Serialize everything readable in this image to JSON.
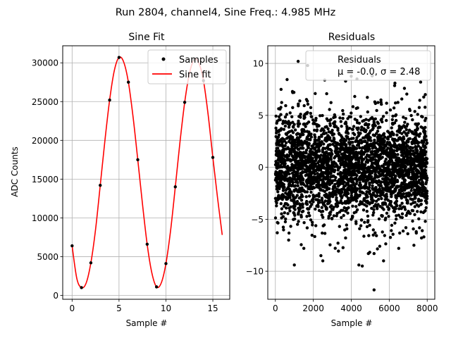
{
  "figure": {
    "suptitle": "Run 2804, channel4, Sine Freq.: 4.985 MHz"
  },
  "chart_data": [
    {
      "type": "scatter",
      "title": "Sine Fit",
      "xlabel": "Sample #",
      "ylabel": "ADC Counts",
      "xlim": [
        -1.0,
        16.8
      ],
      "ylim": [
        -500,
        32200
      ],
      "xticks": [
        0,
        5,
        10,
        15
      ],
      "yticks": [
        0,
        5000,
        10000,
        15000,
        20000,
        25000,
        30000
      ],
      "grid": true,
      "legend_position": "top-right",
      "series": [
        {
          "name": "Samples",
          "kind": "scatter",
          "color": "#000000",
          "x": [
            0,
            1,
            2,
            3,
            4,
            5,
            6,
            7,
            8,
            9,
            10,
            11,
            12,
            13,
            14,
            15
          ],
          "y": [
            6400,
            1000,
            4200,
            14200,
            25200,
            30700,
            27500,
            17500,
            6600,
            1100,
            4100,
            14000,
            24900,
            30400,
            27700,
            17800
          ]
        },
        {
          "name": "Sine fit",
          "kind": "line",
          "color": "#ff0000",
          "x": [
            0,
            0.5,
            1,
            1.5,
            2,
            2.5,
            3,
            3.5,
            4,
            4.5,
            5,
            5.5,
            6,
            6.5,
            7,
            7.5,
            8,
            8.5,
            9,
            9.5,
            10,
            10.5,
            11,
            11.5,
            12,
            12.5,
            13,
            13.5,
            14,
            14.5,
            15,
            15.5,
            16
          ],
          "y": [
            6400,
            2200,
            1000,
            1600,
            4200,
            8500,
            14200,
            20000,
            25200,
            29000,
            30700,
            30100,
            27500,
            23000,
            17500,
            11800,
            6600,
            2900,
            1100,
            1600,
            4100,
            8400,
            14000,
            19800,
            24900,
            28600,
            30400,
            30000,
            27700,
            23300,
            17800,
            12600,
            7800
          ]
        }
      ]
    },
    {
      "type": "scatter",
      "title": "Residuals",
      "xlabel": "Sample #",
      "ylabel": "",
      "xlim": [
        -400,
        8400
      ],
      "ylim": [
        -12.7,
        11.7
      ],
      "xticks": [
        0,
        2000,
        4000,
        6000,
        8000
      ],
      "yticks": [
        -10,
        -5,
        0,
        5,
        10
      ],
      "grid": true,
      "legend_position": "top-right",
      "legend": {
        "title": "Residuals",
        "stats": "μ = -0.0, σ = 2.48"
      },
      "series": [
        {
          "name": "",
          "kind": "scatter",
          "color": "#000000",
          "n_points": 8000,
          "mu": 0.0,
          "sigma": 2.48,
          "sampled_points": [
            [
              1200,
              10.2
            ],
            [
              2600,
              8.4
            ],
            [
              4300,
              8.5
            ],
            [
              5100,
              8.8
            ],
            [
              6300,
              8.1
            ],
            [
              7900,
              7.0
            ],
            [
              1700,
              9.8
            ],
            [
              3700,
              8.3
            ],
            [
              6800,
              7.6
            ],
            [
              1000,
              -9.4
            ],
            [
              4400,
              -9.4
            ],
            [
              5200,
              -11.8
            ],
            [
              2500,
              -9.0
            ],
            [
              2400,
              -8.5
            ],
            [
              700,
              -7.0
            ],
            [
              4900,
              -8.3
            ],
            [
              5200,
              -8.3
            ],
            [
              5500,
              -7.6
            ],
            [
              1500,
              -7.8
            ],
            [
              100,
              -6.3
            ],
            [
              5700,
              -9.0
            ],
            [
              3300,
              -7.3
            ],
            [
              3700,
              -6.8
            ],
            [
              6500,
              -7.8
            ],
            [
              7300,
              -7.5
            ],
            [
              7700,
              -6.8
            ],
            [
              7900,
              -5.2
            ],
            [
              300,
              7.5
            ],
            [
              900,
              7.3
            ],
            [
              2100,
              7.1
            ]
          ]
        }
      ]
    }
  ]
}
